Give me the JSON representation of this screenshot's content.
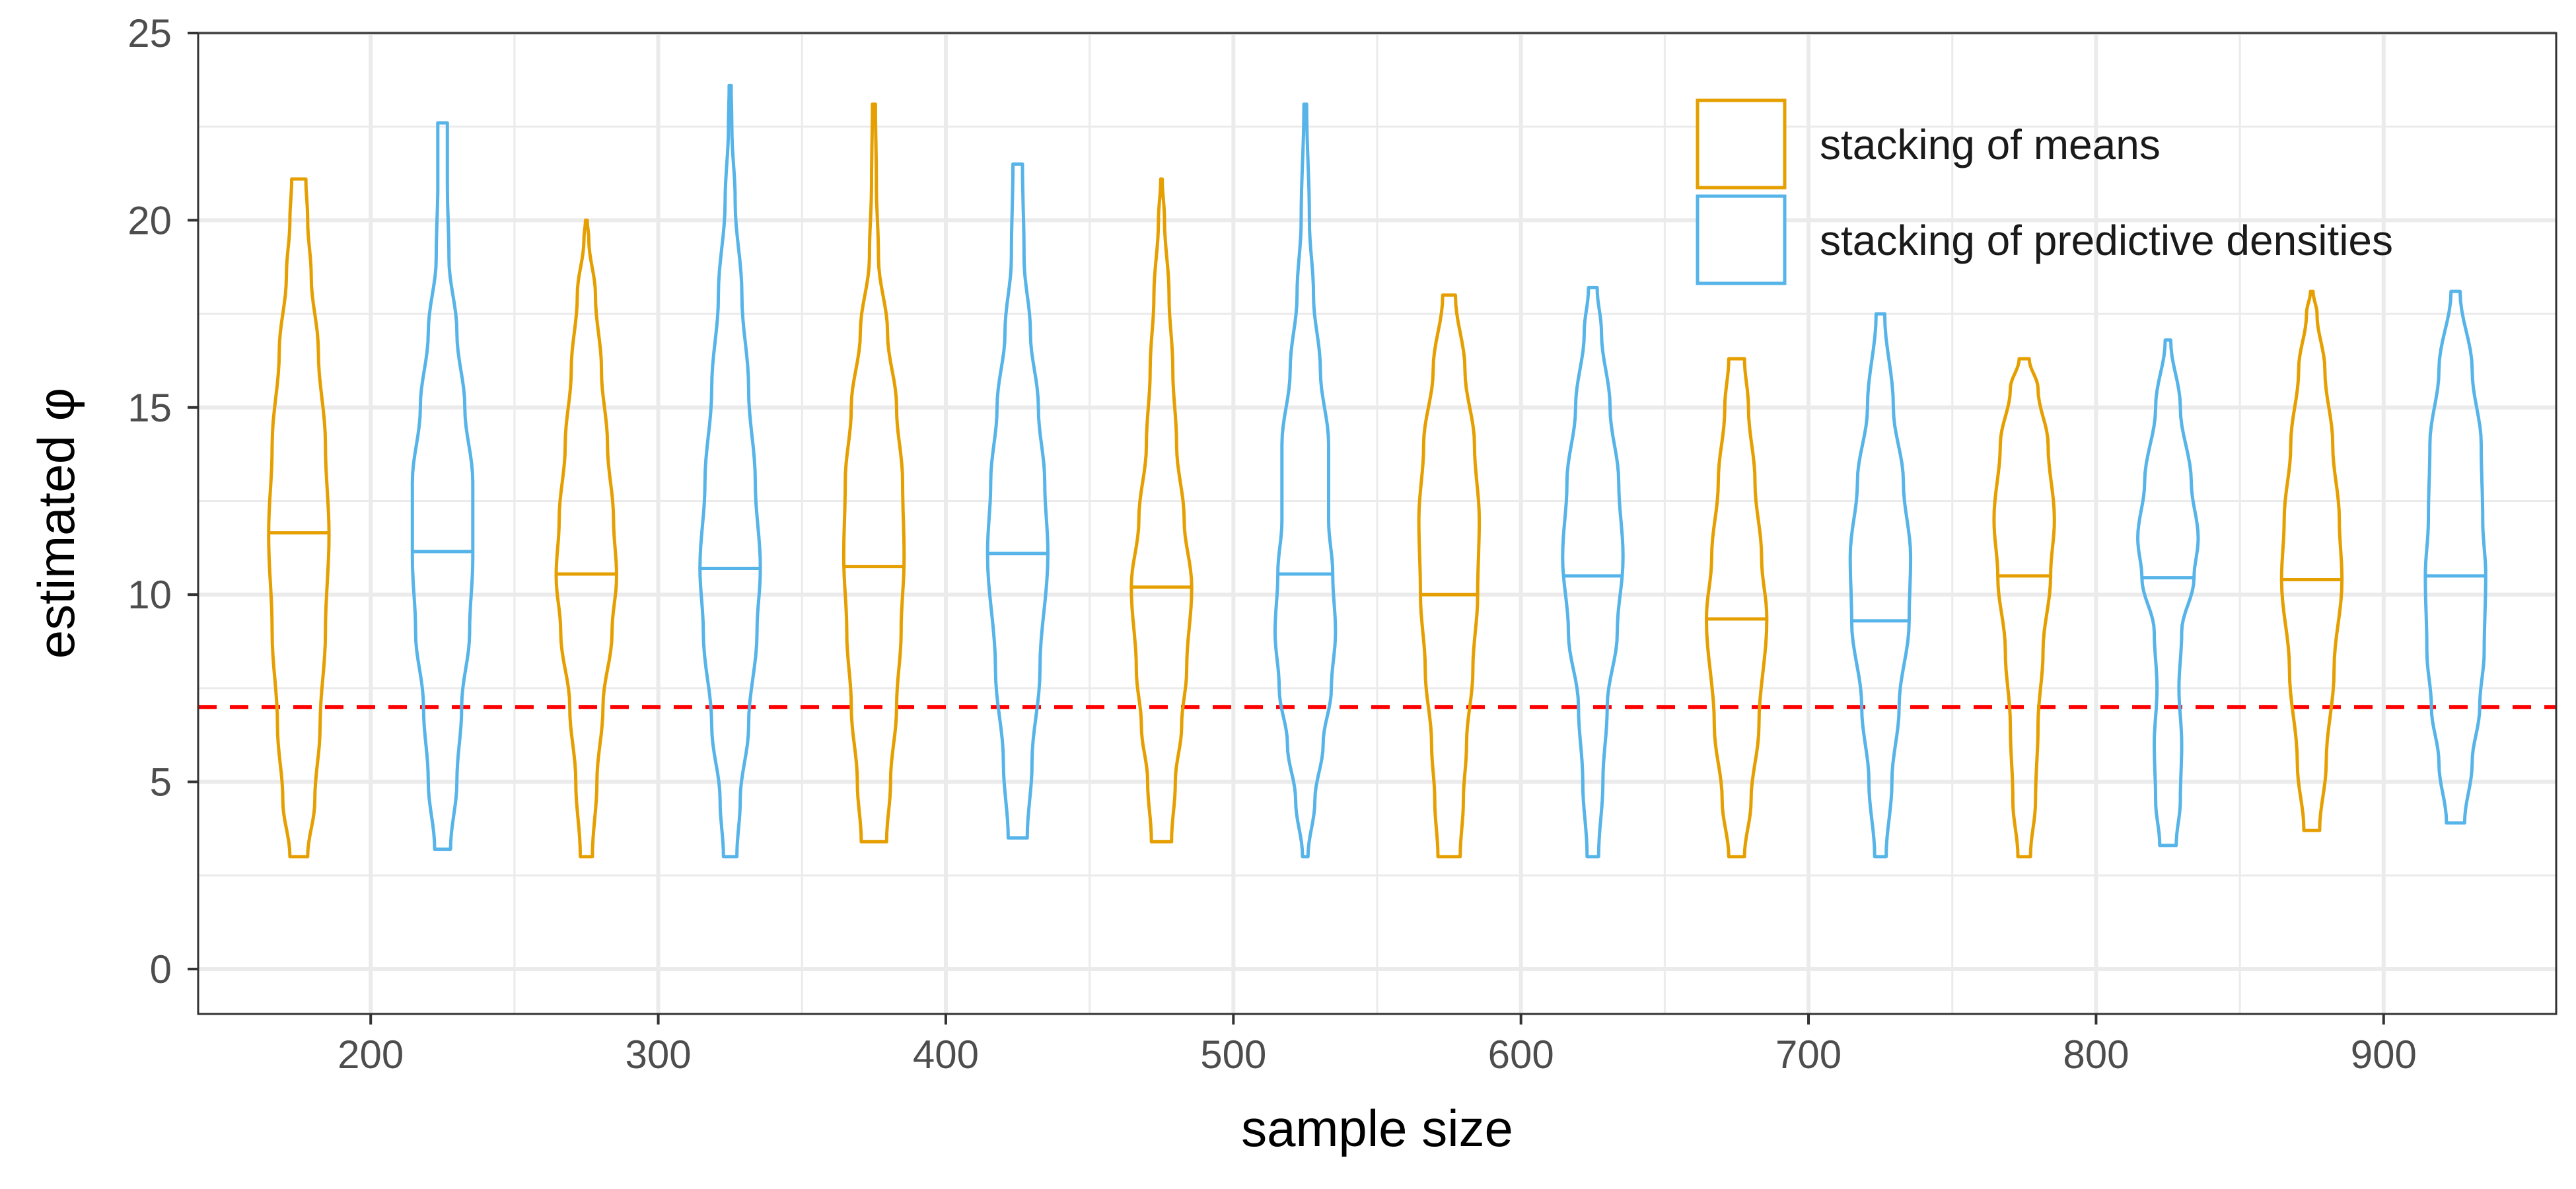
{
  "chart_data": {
    "type": "violin",
    "xlabel": "sample size",
    "ylabel": "estimated φ",
    "xlim": [
      140,
      960
    ],
    "ylim": [
      -1.2,
      25
    ],
    "x_ticks": [
      200,
      300,
      400,
      500,
      600,
      700,
      800,
      900
    ],
    "y_ticks": [
      0,
      5,
      10,
      15,
      20,
      25
    ],
    "grid": true,
    "legend_position": "top-right",
    "reference_line": {
      "y": 7,
      "color": "#ff0000",
      "style": "dashed"
    },
    "offset": 25,
    "series": [
      {
        "name": "stacking of means",
        "color": "#e69f00",
        "violins": [
          {
            "x": 200,
            "min": 3.0,
            "max": 21.1,
            "median": 11.65,
            "top_halfwidth": 0.2,
            "bottom_halfwidth": 0.2,
            "profile": [
              [
                3.0,
                0.25
              ],
              [
                4.5,
                0.45
              ],
              [
                6.5,
                0.6
              ],
              [
                9,
                0.75
              ],
              [
                11.6,
                0.85
              ],
              [
                14,
                0.75
              ],
              [
                16.5,
                0.55
              ],
              [
                18.5,
                0.35
              ],
              [
                20,
                0.25
              ],
              [
                21.1,
                0.2
              ]
            ]
          },
          {
            "x": 300,
            "min": 3.0,
            "max": 20.0,
            "median": 10.55,
            "top_halfwidth": 0.03,
            "bottom_halfwidth": 0.2,
            "profile": [
              [
                3.0,
                0.2
              ],
              [
                5,
                0.35
              ],
              [
                7,
                0.55
              ],
              [
                9,
                0.85
              ],
              [
                10.5,
                1.0
              ],
              [
                12,
                0.9
              ],
              [
                14,
                0.7
              ],
              [
                16,
                0.5
              ],
              [
                18,
                0.3
              ],
              [
                19.5,
                0.08
              ],
              [
                20.0,
                0.03
              ]
            ]
          },
          {
            "x": 400,
            "min": 3.4,
            "max": 23.1,
            "median": 10.75,
            "top_halfwidth": 0.05,
            "bottom_halfwidth": 0.42,
            "profile": [
              [
                3.4,
                0.42
              ],
              [
                5,
                0.55
              ],
              [
                7,
                0.75
              ],
              [
                9,
                0.9
              ],
              [
                11,
                1.0
              ],
              [
                13,
                0.95
              ],
              [
                15,
                0.75
              ],
              [
                17,
                0.45
              ],
              [
                19,
                0.15
              ],
              [
                21,
                0.08
              ],
              [
                23.1,
                0.05
              ]
            ]
          },
          {
            "x": 500,
            "min": 3.4,
            "max": 21.1,
            "median": 10.2,
            "top_halfwidth": 0.03,
            "bottom_halfwidth": 0.4,
            "profile": [
              [
                3.4,
                0.4
              ],
              [
                5,
                0.55
              ],
              [
                6.5,
                0.8
              ],
              [
                8,
                1.0
              ],
              [
                10.2,
                1.2
              ],
              [
                12,
                0.9
              ],
              [
                14,
                0.6
              ],
              [
                16,
                0.45
              ],
              [
                18,
                0.3
              ],
              [
                20,
                0.12
              ],
              [
                21.1,
                0.03
              ]
            ]
          },
          {
            "x": 600,
            "min": 3.0,
            "max": 18.0,
            "median": 10.0,
            "top_halfwidth": 0.2,
            "bottom_halfwidth": 0.35,
            "profile": [
              [
                3.0,
                0.35
              ],
              [
                4.5,
                0.45
              ],
              [
                6,
                0.55
              ],
              [
                8,
                0.75
              ],
              [
                10,
                0.9
              ],
              [
                12,
                0.95
              ],
              [
                14,
                0.8
              ],
              [
                16,
                0.5
              ],
              [
                18,
                0.2
              ]
            ]
          },
          {
            "x": 700,
            "min": 3.0,
            "max": 16.3,
            "median": 9.35,
            "top_halfwidth": 0.3,
            "bottom_halfwidth": 0.3,
            "profile": [
              [
                3.0,
                0.3
              ],
              [
                4.5,
                0.55
              ],
              [
                6.5,
                0.85
              ],
              [
                9.35,
                1.15
              ],
              [
                11,
                0.95
              ],
              [
                13,
                0.7
              ],
              [
                15,
                0.45
              ],
              [
                16.3,
                0.3
              ]
            ]
          },
          {
            "x": 800,
            "min": 3.0,
            "max": 16.3,
            "median": 10.5,
            "top_halfwidth": 0.2,
            "bottom_halfwidth": 0.25,
            "profile": [
              [
                3.0,
                0.25
              ],
              [
                4.5,
                0.45
              ],
              [
                6.5,
                0.55
              ],
              [
                8.5,
                0.75
              ],
              [
                10.5,
                1.05
              ],
              [
                12,
                1.2
              ],
              [
                14,
                0.95
              ],
              [
                15.5,
                0.55
              ],
              [
                16.3,
                0.2
              ]
            ]
          },
          {
            "x": 900,
            "min": 3.7,
            "max": 18.1,
            "median": 10.4,
            "top_halfwidth": 0.05,
            "bottom_halfwidth": 0.3,
            "profile": [
              [
                3.7,
                0.3
              ],
              [
                5.5,
                0.55
              ],
              [
                8,
                0.85
              ],
              [
                10.4,
                1.15
              ],
              [
                12,
                1.05
              ],
              [
                14,
                0.8
              ],
              [
                16,
                0.5
              ],
              [
                17.5,
                0.2
              ],
              [
                18.1,
                0.05
              ]
            ]
          }
        ]
      },
      {
        "name": "stacking of predictive densities",
        "color": "#56b4e9",
        "violins": [
          {
            "x": 200,
            "min": 3.2,
            "max": 22.6,
            "median": 11.15,
            "top_halfwidth": 0.15,
            "bottom_halfwidth": 0.25,
            "profile": [
              [
                3.2,
                0.25
              ],
              [
                5,
                0.45
              ],
              [
                7,
                0.6
              ],
              [
                9,
                0.85
              ],
              [
                11,
                0.95
              ],
              [
                13,
                0.95
              ],
              [
                15,
                0.7
              ],
              [
                17,
                0.45
              ],
              [
                19,
                0.2
              ],
              [
                21,
                0.15
              ],
              [
                22.6,
                0.15
              ]
            ]
          },
          {
            "x": 300,
            "min": 3.0,
            "max": 23.6,
            "median": 10.7,
            "top_halfwidth": 0.03,
            "bottom_halfwidth": 0.2,
            "profile": [
              [
                3.0,
                0.2
              ],
              [
                4.5,
                0.3
              ],
              [
                6.5,
                0.55
              ],
              [
                9,
                0.8
              ],
              [
                10.7,
                0.9
              ],
              [
                13,
                0.75
              ],
              [
                15.5,
                0.55
              ],
              [
                18,
                0.35
              ],
              [
                20.5,
                0.15
              ],
              [
                22.5,
                0.05
              ],
              [
                23.6,
                0.03
              ]
            ]
          },
          {
            "x": 400,
            "min": 3.5,
            "max": 21.5,
            "median": 11.1,
            "top_halfwidth": 0.15,
            "bottom_halfwidth": 0.3,
            "profile": [
              [
                3.5,
                0.3
              ],
              [
                5.5,
                0.45
              ],
              [
                8,
                0.7
              ],
              [
                11.1,
                0.95
              ],
              [
                13,
                0.85
              ],
              [
                15,
                0.65
              ],
              [
                17,
                0.4
              ],
              [
                19,
                0.2
              ],
              [
                21.5,
                0.15
              ]
            ]
          },
          {
            "x": 500,
            "min": 3.0,
            "max": 23.1,
            "median": 10.55,
            "top_halfwidth": 0.05,
            "bottom_halfwidth": 0.1,
            "profile": [
              [
                3.0,
                0.1
              ],
              [
                4.5,
                0.35
              ],
              [
                6,
                0.65
              ],
              [
                7.5,
                0.95
              ],
              [
                9,
                1.1
              ],
              [
                10.55,
                1.0
              ],
              [
                12,
                0.85
              ],
              [
                14,
                0.85
              ],
              [
                16,
                0.55
              ],
              [
                18,
                0.3
              ],
              [
                20,
                0.15
              ],
              [
                23.1,
                0.05
              ]
            ]
          },
          {
            "x": 600,
            "min": 3.0,
            "max": 18.2,
            "median": 10.5,
            "top_halfwidth": 0.15,
            "bottom_halfwidth": 0.2,
            "profile": [
              [
                3.0,
                0.2
              ],
              [
                5,
                0.35
              ],
              [
                7,
                0.5
              ],
              [
                9,
                0.85
              ],
              [
                11,
                1.05
              ],
              [
                13,
                0.9
              ],
              [
                15,
                0.6
              ],
              [
                17,
                0.3
              ],
              [
                18.2,
                0.15
              ]
            ]
          },
          {
            "x": 700,
            "min": 3.0,
            "max": 17.5,
            "median": 9.3,
            "top_halfwidth": 0.15,
            "bottom_halfwidth": 0.2,
            "profile": [
              [
                3.0,
                0.2
              ],
              [
                5,
                0.4
              ],
              [
                7,
                0.65
              ],
              [
                9.3,
                1.0
              ],
              [
                11,
                1.05
              ],
              [
                13,
                0.8
              ],
              [
                15,
                0.45
              ],
              [
                17.5,
                0.15
              ]
            ]
          },
          {
            "x": 800,
            "min": 3.3,
            "max": 16.8,
            "median": 10.45,
            "top_halfwidth": 0.1,
            "bottom_halfwidth": 0.3,
            "profile": [
              [
                3.3,
                0.3
              ],
              [
                4.5,
                0.45
              ],
              [
                6,
                0.5
              ],
              [
                7.5,
                0.4
              ],
              [
                9,
                0.5
              ],
              [
                10.45,
                0.95
              ],
              [
                11.5,
                1.1
              ],
              [
                13,
                0.85
              ],
              [
                15,
                0.45
              ],
              [
                16.8,
                0.1
              ]
            ]
          },
          {
            "x": 900,
            "min": 3.9,
            "max": 18.1,
            "median": 10.5,
            "top_halfwidth": 0.15,
            "bottom_halfwidth": 0.3,
            "profile": [
              [
                3.9,
                0.3
              ],
              [
                5.5,
                0.55
              ],
              [
                7,
                0.8
              ],
              [
                8.5,
                0.95
              ],
              [
                10.5,
                1.0
              ],
              [
                12,
                0.9
              ],
              [
                14,
                0.85
              ],
              [
                16,
                0.55
              ],
              [
                18.1,
                0.15
              ]
            ]
          }
        ]
      }
    ]
  }
}
